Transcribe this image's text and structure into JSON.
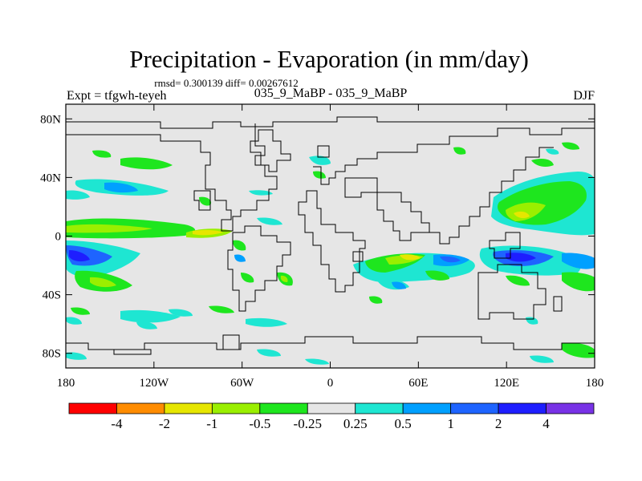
{
  "title": "Precipitation - Evaporation (in mm/day)",
  "stats": "rmsd= 0.300139 diff= 0.00267612",
  "subtitle_left": "Expt = tfgwh-teyeh",
  "subtitle_center": "035_9_MaBP - 035_9_MaBP",
  "subtitle_right": "DJF",
  "x_ticks": [
    "180",
    "120W",
    "60W",
    "0",
    "60E",
    "120E",
    "180"
  ],
  "y_ticks": [
    "80N",
    "40N",
    "0",
    "40S",
    "80S"
  ],
  "colorbar": {
    "colors": [
      "#ff0000",
      "#ff8c00",
      "#e6e600",
      "#9aef00",
      "#1ee61e",
      "#e6e6e6",
      "#1ee6d2",
      "#00a0ff",
      "#1e64ff",
      "#1e1eff",
      "#7832e6"
    ],
    "labels": [
      "-4",
      "-2",
      "-1",
      "-0.5",
      "-0.25",
      "0.25",
      "0.5",
      "1",
      "2",
      "4"
    ]
  }
}
